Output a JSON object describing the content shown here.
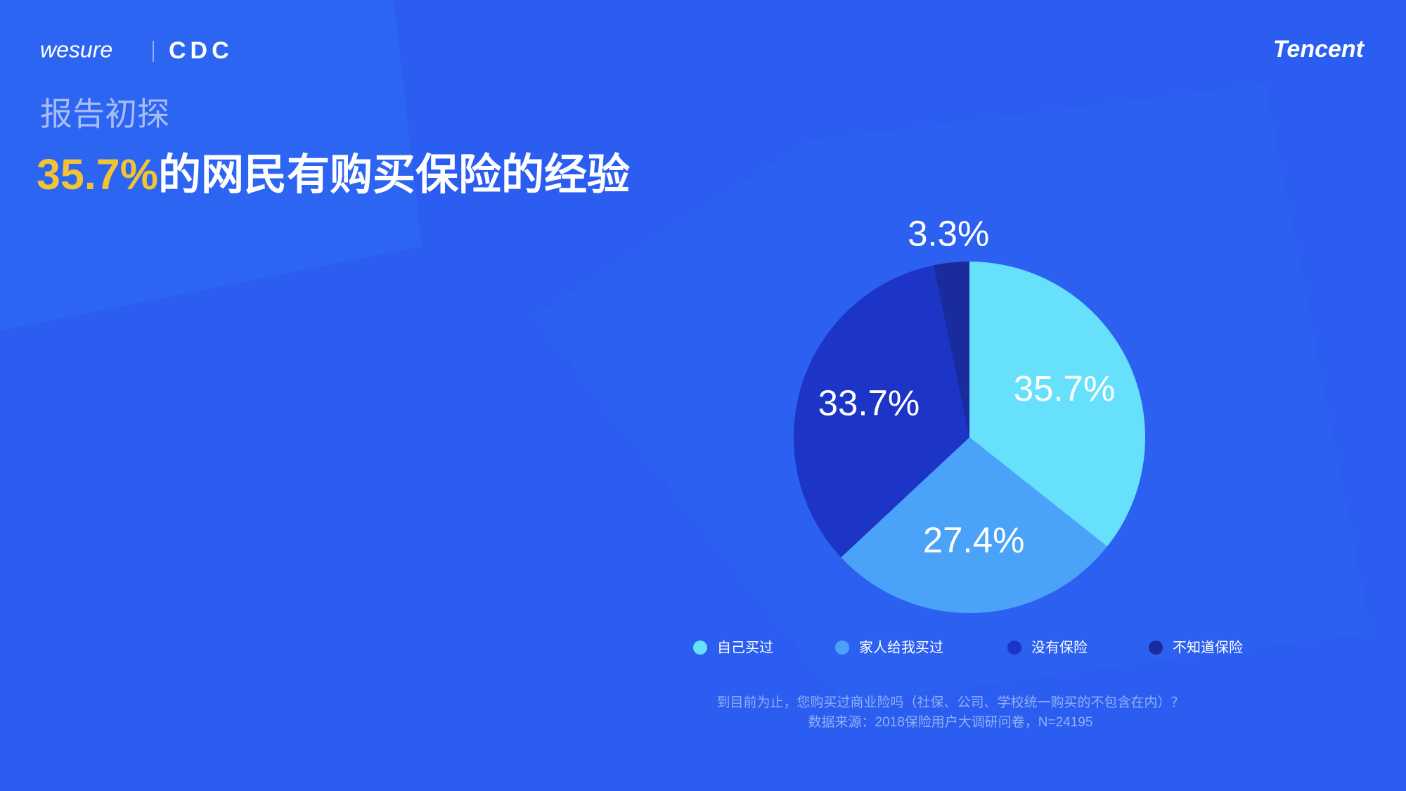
{
  "header": {
    "logo_left": "wesure",
    "logo_mid": "CDC",
    "logo_right": "Tencent",
    "section": "报告初探",
    "title_highlight": "35.7%",
    "title_rest": "的网民有购买保险的经验"
  },
  "chart_data": {
    "type": "pie",
    "categories": [
      "自己买过",
      "家人给我买过",
      "没有保险",
      "不知道保险"
    ],
    "values": [
      35.7,
      27.4,
      33.7,
      3.3
    ],
    "value_labels": [
      "35.7%",
      "27.4%",
      "33.7%",
      "3.3%"
    ],
    "colors": [
      "#67e0fb",
      "#4aa3f8",
      "#1d35c7",
      "#1a2b9e"
    ],
    "legend": "bottom"
  },
  "footnote": [
    "到目前为止，您购买过商业险吗（社保、公司、学校统一购买的不包含在内）？",
    "数据来源：2018保险用户大调研问卷，N=24195"
  ]
}
